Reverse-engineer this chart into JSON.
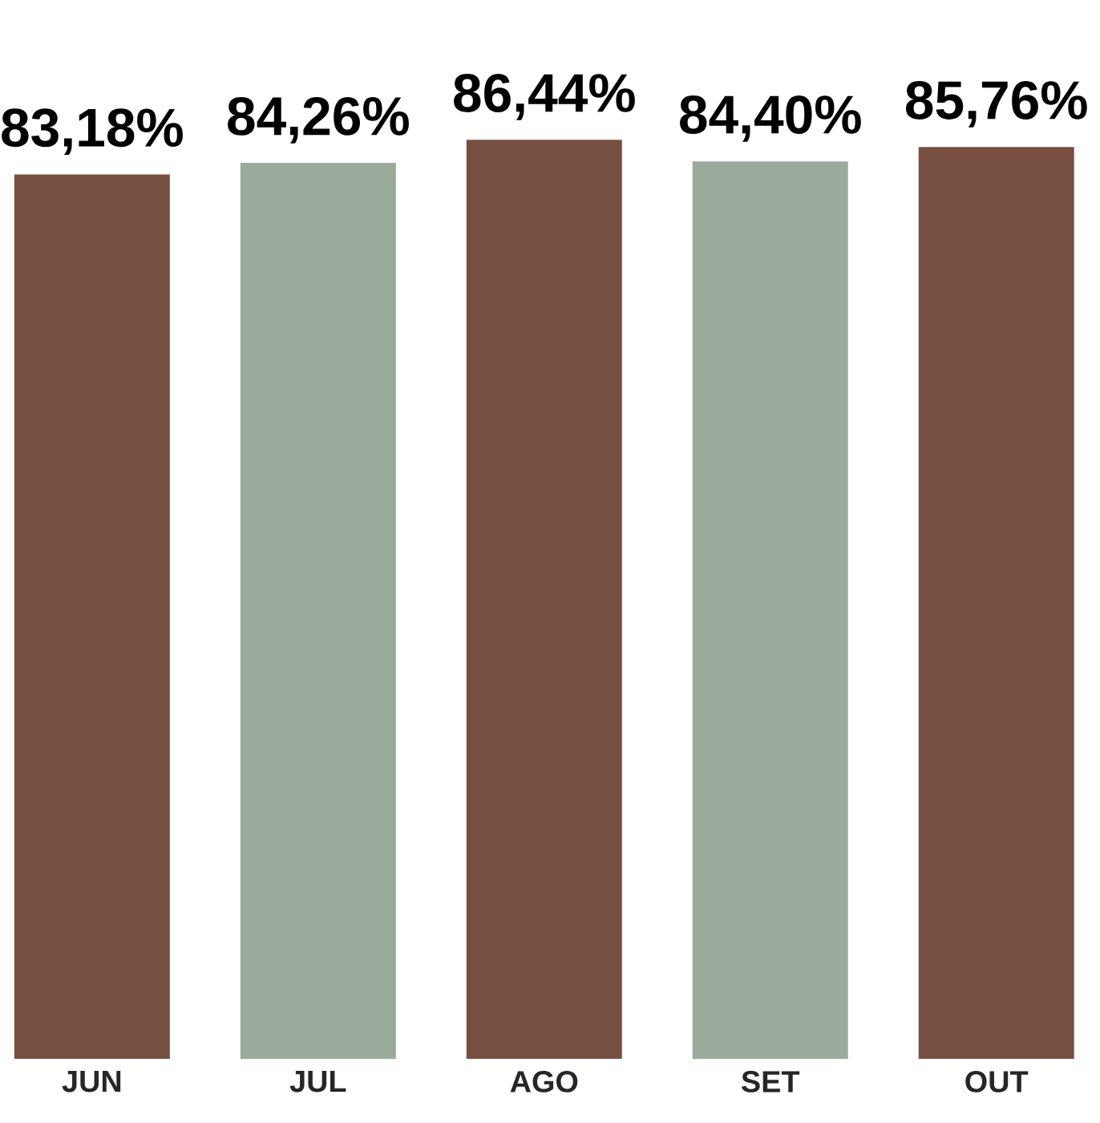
{
  "chart_data": {
    "type": "bar",
    "categories": [
      "JUN",
      "JUL",
      "AGO",
      "SET",
      "OUT"
    ],
    "values": [
      83.18,
      84.26,
      86.44,
      84.4,
      85.76
    ],
    "value_labels": [
      "83,18%",
      "84,26%",
      "86,44%",
      "84,40%",
      "85,76%"
    ],
    "colors": [
      "#774f40",
      "#9aab9c",
      "#774f40",
      "#9aab9c",
      "#774f40"
    ],
    "grid": false
  }
}
